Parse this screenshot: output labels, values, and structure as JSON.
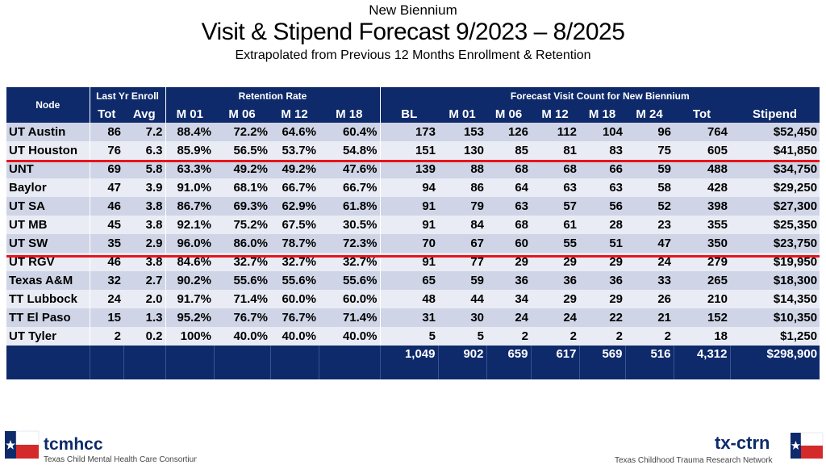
{
  "titles": {
    "line1": "New Biennium",
    "line2": "Visit & Stipend Forecast 9/2023 – 8/2025",
    "line3": "Extrapolated from Previous 12 Months Enrollment & Retention"
  },
  "table": {
    "node_header": "Node",
    "group_headers": [
      "Last Yr Enroll",
      "Retention Rate",
      "Forecast Visit Count for New Biennium"
    ],
    "columns": [
      "Tot",
      "Avg",
      "M 01",
      "M 06",
      "M 12",
      "M 18",
      "BL",
      "M 01",
      "M 06",
      "M 12",
      "M 18",
      "M 24",
      "Tot",
      "Stipend"
    ],
    "rows": [
      {
        "node": "UT Austin",
        "vals": [
          "86",
          "7.2",
          "88.4%",
          "72.2%",
          "64.6%",
          "60.4%",
          "173",
          "153",
          "126",
          "112",
          "104",
          "96",
          "764",
          "$52,450"
        ]
      },
      {
        "node": "UT Houston",
        "vals": [
          "76",
          "6.3",
          "85.9%",
          "56.5%",
          "53.7%",
          "54.8%",
          "151",
          "130",
          "85",
          "81",
          "83",
          "75",
          "605",
          "$41,850"
        ]
      },
      {
        "node": "UNT",
        "vals": [
          "69",
          "5.8",
          "63.3%",
          "49.2%",
          "49.2%",
          "47.6%",
          "139",
          "88",
          "68",
          "68",
          "66",
          "59",
          "488",
          "$34,750"
        ]
      },
      {
        "node": "Baylor",
        "vals": [
          "47",
          "3.9",
          "91.0%",
          "68.1%",
          "66.7%",
          "66.7%",
          "94",
          "86",
          "64",
          "63",
          "63",
          "58",
          "428",
          "$29,250"
        ]
      },
      {
        "node": "UT SA",
        "vals": [
          "46",
          "3.8",
          "86.7%",
          "69.3%",
          "62.9%",
          "61.8%",
          "91",
          "79",
          "63",
          "57",
          "56",
          "52",
          "398",
          "$27,300"
        ]
      },
      {
        "node": "UT MB",
        "vals": [
          "45",
          "3.8",
          "92.1%",
          "75.2%",
          "67.5%",
          "30.5%",
          "91",
          "84",
          "68",
          "61",
          "28",
          "23",
          "355",
          "$25,350"
        ]
      },
      {
        "node": "UT SW",
        "vals": [
          "35",
          "2.9",
          "96.0%",
          "86.0%",
          "78.7%",
          "72.3%",
          "70",
          "67",
          "60",
          "55",
          "51",
          "47",
          "350",
          "$23,750"
        ]
      },
      {
        "node": "UT RGV",
        "vals": [
          "46",
          "3.8",
          "84.6%",
          "32.7%",
          "32.7%",
          "32.7%",
          "91",
          "77",
          "29",
          "29",
          "29",
          "24",
          "279",
          "$19,950"
        ]
      },
      {
        "node": "Texas A&M",
        "vals": [
          "32",
          "2.7",
          "90.2%",
          "55.6%",
          "55.6%",
          "55.6%",
          "65",
          "59",
          "36",
          "36",
          "36",
          "33",
          "265",
          "$18,300"
        ]
      },
      {
        "node": "TT Lubbock",
        "vals": [
          "24",
          "2.0",
          "91.7%",
          "71.4%",
          "60.0%",
          "60.0%",
          "48",
          "44",
          "34",
          "29",
          "29",
          "26",
          "210",
          "$14,350"
        ]
      },
      {
        "node": "TT El Paso",
        "vals": [
          "15",
          "1.3",
          "95.2%",
          "76.7%",
          "76.7%",
          "71.4%",
          "31",
          "30",
          "24",
          "24",
          "22",
          "21",
          "152",
          "$10,350"
        ]
      },
      {
        "node": "UT Tyler",
        "vals": [
          "2",
          "0.2",
          "100%",
          "40.0%",
          "40.0%",
          "40.0%",
          "5",
          "5",
          "2",
          "2",
          "2",
          "2",
          "18",
          "$1,250"
        ]
      }
    ],
    "totals": [
      "",
      "",
      "",
      "",
      "",
      "",
      "",
      "1,049",
      "902",
      "659",
      "617",
      "569",
      "516",
      "4,312",
      "$298,900"
    ]
  },
  "footer": {
    "left_logo_text": "tcmhcc",
    "left_logo_sub": "Texas Child Mental Health Care Consortium",
    "right_logo_text": "tx-ctrn",
    "right_logo_sub": "Texas Childhood Trauma Research Network"
  },
  "colors": {
    "header_bg": "#0e2a6b",
    "row_dark": "#cfd5e6",
    "row_light": "#e9ecf4",
    "red_line": "#e8141c"
  }
}
